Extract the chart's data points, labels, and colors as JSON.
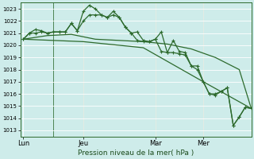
{
  "bg_color": "#ceecea",
  "grid_color": "#ffffff",
  "line_color": "#2d6a2d",
  "marker_color": "#2d6a2d",
  "xlabel_text": "Pression niveau de la mer( hPa )",
  "xtick_labels": [
    "Lun",
    "Jeu",
    "Mar",
    "Mer"
  ],
  "xtick_positions": [
    0,
    10,
    22,
    30
  ],
  "ytick_min": 1013,
  "ytick_max": 1023,
  "xlim": [
    -0.5,
    38
  ],
  "series1_x": [
    0,
    1,
    2,
    3,
    4,
    5,
    6,
    7,
    8,
    9,
    10,
    11,
    12,
    13,
    14,
    15,
    16,
    17,
    18,
    19,
    20,
    21,
    22,
    23,
    24,
    25,
    26,
    27,
    28,
    29,
    30,
    31,
    32,
    33,
    34,
    35,
    36,
    37,
    38
  ],
  "series1_y": [
    1020.5,
    1021.0,
    1021.3,
    1021.2,
    1021.0,
    1021.1,
    1021.1,
    1021.1,
    1021.8,
    1021.2,
    1022.8,
    1023.3,
    1023.0,
    1022.5,
    1022.3,
    1022.8,
    1022.3,
    1021.5,
    1021.0,
    1021.1,
    1020.4,
    1020.3,
    1020.5,
    1021.1,
    1019.4,
    1020.4,
    1019.5,
    1019.4,
    1018.3,
    1018.3,
    1017.0,
    1016.0,
    1015.9,
    1016.2,
    1016.5,
    1013.4,
    1014.1,
    1014.9,
    1014.8
  ],
  "series2_x": [
    0,
    1,
    2,
    3,
    4,
    5,
    6,
    7,
    8,
    9,
    10,
    11,
    12,
    13,
    14,
    15,
    16,
    17,
    18,
    19,
    20,
    21,
    22,
    23,
    24,
    25,
    26,
    27,
    28,
    29,
    30,
    31,
    32,
    33,
    34,
    35,
    36,
    37,
    38
  ],
  "series2_y": [
    1020.5,
    1021.0,
    1021.0,
    1021.1,
    1021.0,
    1021.1,
    1021.1,
    1021.1,
    1021.8,
    1021.2,
    1022.0,
    1022.5,
    1022.5,
    1022.5,
    1022.3,
    1022.5,
    1022.3,
    1021.5,
    1021.0,
    1020.4,
    1020.3,
    1020.3,
    1020.5,
    1019.5,
    1019.4,
    1019.4,
    1019.3,
    1019.2,
    1018.3,
    1018.0,
    1017.0,
    1016.0,
    1016.0,
    1016.2,
    1016.5,
    1013.4,
    1014.1,
    1014.9,
    1014.8
  ],
  "series3_x": [
    0,
    4,
    8,
    12,
    16,
    20,
    24,
    28,
    32,
    36,
    38
  ],
  "series3_y": [
    1020.5,
    1020.8,
    1020.9,
    1020.5,
    1020.4,
    1020.3,
    1020.1,
    1019.7,
    1019.0,
    1018.0,
    1014.8
  ],
  "series4_x": [
    0,
    10,
    20,
    30,
    38
  ],
  "series4_y": [
    1020.5,
    1020.3,
    1019.8,
    1017.0,
    1014.8
  ],
  "vline_positions": [
    5,
    10,
    22,
    30
  ],
  "marker_size": 2.5,
  "line_width": 0.9
}
